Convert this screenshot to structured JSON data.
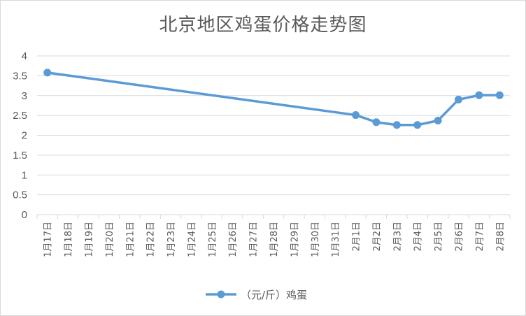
{
  "chart_data": {
    "type": "line",
    "title": "北京地区鸡蛋价格走势图",
    "xlabel": "",
    "ylabel": "",
    "categories": [
      "1月17日",
      "1月18日",
      "1月19日",
      "1月20日",
      "1月21日",
      "1月22日",
      "1月23日",
      "1月24日",
      "1月25日",
      "1月26日",
      "1月27日",
      "1月28日",
      "1月29日",
      "1月30日",
      "1月31日",
      "2月1日",
      "2月2日",
      "2月3日",
      "2月4日",
      "2月5日",
      "2月6日",
      "2月7日",
      "2月8日"
    ],
    "ylim": [
      0,
      4
    ],
    "yticks": [
      "0",
      "0.5",
      "1",
      "1.5",
      "2",
      "2.5",
      "3",
      "3.5",
      "4"
    ],
    "grid": true,
    "legend_position": "bottom",
    "series": [
      {
        "name": "（元/斤）鸡蛋",
        "color": "#5b9bd5",
        "values": [
          3.58,
          null,
          null,
          null,
          null,
          null,
          null,
          null,
          null,
          null,
          null,
          null,
          null,
          null,
          null,
          2.51,
          2.33,
          2.26,
          2.26,
          2.37,
          2.9,
          3.01,
          3.01
        ]
      }
    ]
  }
}
